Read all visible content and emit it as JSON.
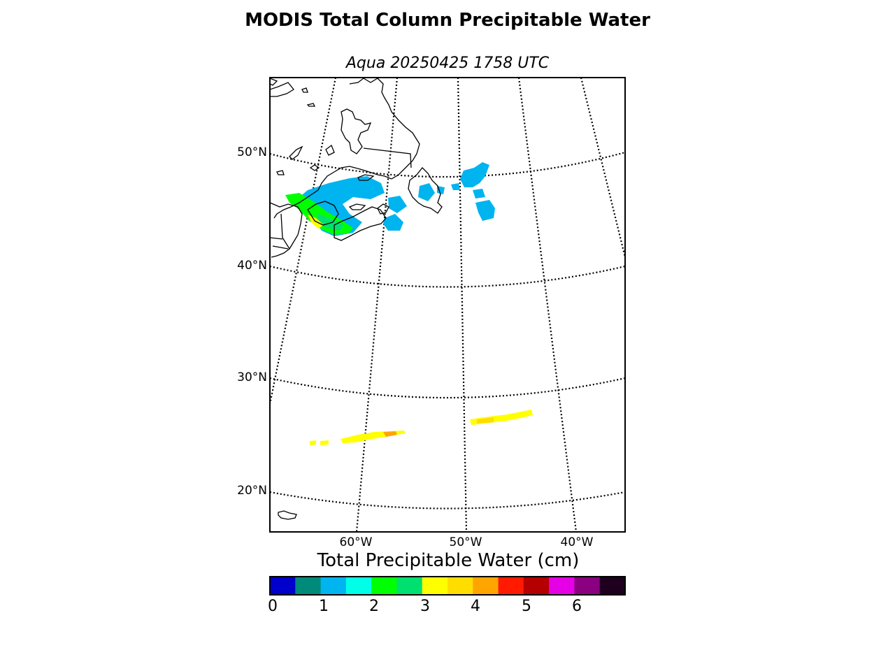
{
  "title": "MODIS Total Column Precipitable Water",
  "subtitle": "Aqua 20250425 1758 UTC",
  "lat_labels": [
    "50°N",
    "40°N",
    "30°N",
    "20°N"
  ],
  "lon_labels": [
    "60°W",
    "50°W",
    "40°W"
  ],
  "colorbar": {
    "title": "Total Precipitable Water (cm)",
    "ticks": [
      "0",
      "1",
      "2",
      "3",
      "4",
      "5",
      "6"
    ],
    "colors": [
      "#0000cc",
      "#008a7a",
      "#00b4f0",
      "#00ffe6",
      "#00ff00",
      "#00e070",
      "#ffff00",
      "#ffdd00",
      "#ffa500",
      "#ff1a00",
      "#b40000",
      "#e600e6",
      "#8a0080",
      "#1e001e"
    ]
  }
}
